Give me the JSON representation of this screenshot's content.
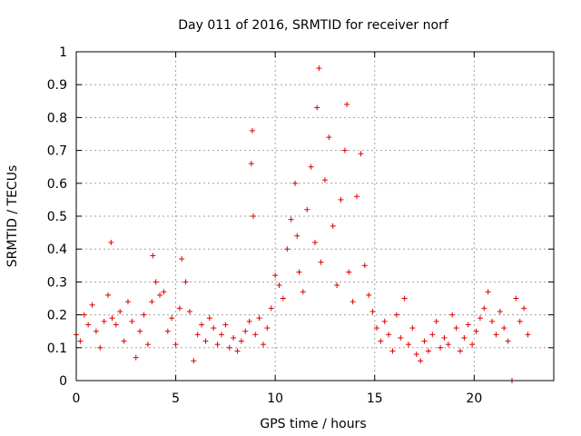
{
  "chart_data": {
    "type": "scatter",
    "title": "Day 011 of 2016, SRMTID for receiver norf",
    "xlabel": "GPS time / hours",
    "ylabel": "SRMTID / TECUs",
    "xlim": [
      0,
      24
    ],
    "ylim": [
      0,
      1
    ],
    "x_ticks": [
      0,
      5,
      10,
      15,
      20
    ],
    "x_tick_labels": [
      "0",
      "5",
      "10",
      "15",
      "20"
    ],
    "y_ticks": [
      0,
      0.1,
      0.2,
      0.3,
      0.4,
      0.5,
      0.6,
      0.7,
      0.8,
      0.9,
      1
    ],
    "y_tick_labels": [
      "0",
      "0.1",
      "0.2",
      "0.3",
      "0.4",
      "0.5",
      "0.6",
      "0.7",
      "0.8",
      "0.9",
      "1"
    ],
    "grid": true,
    "marker": "+",
    "marker_color": "#dd0000",
    "series": [
      {
        "name": "SRMTID",
        "x": [
          0.0,
          0.2,
          0.4,
          0.6,
          0.8,
          1.0,
          1.2,
          1.4,
          1.6,
          1.75,
          1.8,
          2.0,
          2.2,
          2.4,
          2.6,
          2.8,
          3.0,
          3.2,
          3.4,
          3.6,
          3.8,
          3.85,
          4.0,
          4.2,
          4.4,
          4.6,
          4.8,
          5.0,
          5.2,
          5.3,
          5.5,
          5.7,
          5.9,
          6.1,
          6.3,
          6.5,
          6.7,
          6.9,
          7.1,
          7.3,
          7.5,
          7.7,
          7.9,
          8.1,
          8.3,
          8.5,
          8.7,
          8.8,
          8.85,
          8.9,
          9.0,
          9.2,
          9.4,
          9.6,
          9.8,
          10.0,
          10.2,
          10.4,
          10.6,
          10.8,
          11.0,
          11.1,
          11.2,
          11.4,
          11.6,
          11.8,
          12.0,
          12.1,
          12.2,
          12.3,
          12.5,
          12.7,
          12.9,
          13.1,
          13.3,
          13.5,
          13.6,
          13.7,
          13.9,
          14.1,
          14.3,
          14.5,
          14.7,
          14.9,
          15.1,
          15.3,
          15.5,
          15.7,
          15.9,
          16.1,
          16.3,
          16.5,
          16.7,
          16.9,
          17.1,
          17.3,
          17.5,
          17.7,
          17.9,
          18.1,
          18.3,
          18.5,
          18.7,
          18.9,
          19.1,
          19.3,
          19.5,
          19.7,
          19.9,
          20.1,
          20.3,
          20.5,
          20.7,
          20.9,
          21.1,
          21.3,
          21.5,
          21.7,
          21.9,
          22.1,
          22.3,
          22.5,
          22.7
        ],
        "y": [
          0.14,
          0.12,
          0.2,
          0.17,
          0.23,
          0.15,
          0.1,
          0.18,
          0.26,
          0.42,
          0.19,
          0.17,
          0.21,
          0.12,
          0.24,
          0.18,
          0.07,
          0.15,
          0.2,
          0.11,
          0.24,
          0.38,
          0.3,
          0.26,
          0.27,
          0.15,
          0.19,
          0.11,
          0.22,
          0.37,
          0.3,
          0.21,
          0.06,
          0.14,
          0.17,
          0.12,
          0.19,
          0.16,
          0.11,
          0.14,
          0.17,
          0.1,
          0.13,
          0.09,
          0.12,
          0.15,
          0.18,
          0.66,
          0.76,
          0.5,
          0.14,
          0.19,
          0.11,
          0.16,
          0.22,
          0.32,
          0.29,
          0.25,
          0.4,
          0.49,
          0.6,
          0.44,
          0.33,
          0.27,
          0.52,
          0.65,
          0.42,
          0.83,
          0.95,
          0.36,
          0.61,
          0.74,
          0.47,
          0.29,
          0.55,
          0.7,
          0.84,
          0.33,
          0.24,
          0.56,
          0.69,
          0.35,
          0.26,
          0.21,
          0.16,
          0.12,
          0.18,
          0.14,
          0.09,
          0.2,
          0.13,
          0.25,
          0.11,
          0.16,
          0.08,
          0.06,
          0.12,
          0.09,
          0.14,
          0.18,
          0.1,
          0.13,
          0.11,
          0.2,
          0.16,
          0.09,
          0.13,
          0.17,
          0.11,
          0.15,
          0.19,
          0.22,
          0.27,
          0.18,
          0.14,
          0.21,
          0.16,
          0.12,
          0.0,
          0.25,
          0.18,
          0.22,
          0.14
        ]
      }
    ]
  }
}
